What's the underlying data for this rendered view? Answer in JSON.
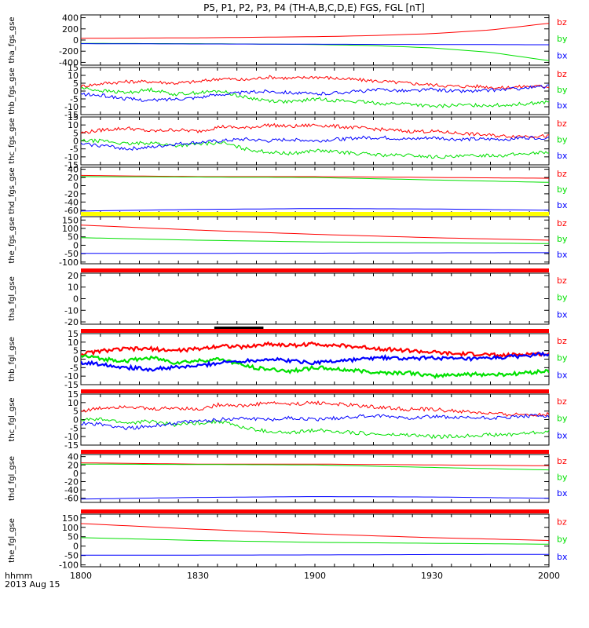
{
  "figure": {
    "title": "P5, P1, P2, P3, P4 (TH-A,B,C,D,E) FGS, FGL [nT]",
    "time_unit_label": "hhmm",
    "date_label": "2013 Aug 15",
    "x_tick_labels": [
      "1800",
      "1830",
      "1900",
      "1930",
      "2000"
    ],
    "x_ticks_hours": [
      18.0,
      18.5,
      19.0,
      19.5,
      20.0
    ],
    "x_range_hours": [
      18.0,
      20.0
    ]
  },
  "colors": {
    "bx": "#0000ff",
    "by": "#00e000",
    "bz": "#ff0000",
    "flag_red": "#ff0000",
    "flag_yellow": "#ffff00",
    "bar_black": "#000000"
  },
  "legend": [
    "bz",
    "by",
    "bx"
  ],
  "chart_data": [
    {
      "type": "line",
      "ylabel": "tha_fgs_gse",
      "ylim": [
        -450,
        450
      ],
      "yticks": [
        400,
        200,
        0,
        -200,
        -400
      ],
      "ytick_labels": [
        "400",
        "200",
        "0",
        "-200",
        "-400"
      ],
      "x": [
        18.0,
        18.5,
        19.0,
        19.25,
        19.5,
        19.75,
        20.0
      ],
      "series": [
        {
          "name": "bz",
          "values": [
            30,
            40,
            60,
            80,
            115,
            180,
            300
          ]
        },
        {
          "name": "by",
          "values": [
            -60,
            -65,
            -80,
            -100,
            -140,
            -220,
            -370
          ]
        },
        {
          "name": "bx",
          "values": [
            -65,
            -70,
            -75,
            -78,
            -80,
            -82,
            -85
          ]
        }
      ],
      "band": null
    },
    {
      "type": "line",
      "ylabel": "thb_fgs_gse",
      "ylim": [
        -15,
        15
      ],
      "yticks": [
        15,
        10,
        5,
        0,
        -5,
        -10,
        -15
      ],
      "ytick_labels": [
        "15",
        "10",
        "5",
        "0",
        "-5",
        "-10",
        "-15"
      ],
      "x": [
        18.0,
        18.1,
        18.2,
        18.3,
        18.4,
        18.5,
        18.6,
        18.7,
        18.8,
        18.9,
        19.0,
        19.1,
        19.2,
        19.3,
        19.4,
        19.5,
        19.6,
        19.7,
        19.8,
        19.9,
        20.0
      ],
      "series": [
        {
          "name": "bz",
          "values": [
            3,
            5,
            6,
            6,
            5,
            6,
            8,
            7,
            9,
            8,
            9,
            8,
            7,
            6,
            5,
            4,
            3,
            3,
            2,
            3,
            3
          ]
        },
        {
          "name": "by",
          "values": [
            2,
            0,
            -1,
            1,
            -2,
            -1,
            0,
            -4,
            -6,
            -7,
            -5,
            -6,
            -7,
            -8,
            -8,
            -10,
            -9,
            -9,
            -9,
            -8,
            -7
          ]
        },
        {
          "name": "bx",
          "values": [
            -2,
            -3,
            -5,
            -6,
            -5,
            -4,
            -2,
            -1,
            0,
            -1,
            -2,
            -1,
            0,
            1,
            0,
            1,
            0,
            0,
            1,
            2,
            3
          ]
        }
      ],
      "band": null
    },
    {
      "type": "line",
      "ylabel": "thc_fgs_gse",
      "ylim": [
        -15,
        15
      ],
      "yticks": [
        15,
        10,
        5,
        0,
        -5,
        -10,
        -15
      ],
      "ytick_labels": [
        "15",
        "10",
        "5",
        "0",
        "-5",
        "-10",
        "-15"
      ],
      "x": [
        18.0,
        18.1,
        18.2,
        18.3,
        18.4,
        18.5,
        18.6,
        18.7,
        18.8,
        18.9,
        19.0,
        19.1,
        19.2,
        19.3,
        19.4,
        19.5,
        19.6,
        19.7,
        19.8,
        19.9,
        20.0
      ],
      "series": [
        {
          "name": "bz",
          "values": [
            5,
            7,
            8,
            6,
            7,
            6,
            9,
            8,
            10,
            9,
            10,
            9,
            8,
            7,
            6,
            6,
            5,
            4,
            3,
            3,
            3
          ]
        },
        {
          "name": "by",
          "values": [
            0,
            0,
            -2,
            -1,
            -3,
            -2,
            -1,
            -5,
            -7,
            -8,
            -6,
            -7,
            -8,
            -9,
            -9,
            -10,
            -10,
            -9,
            -9,
            -8,
            -7
          ]
        },
        {
          "name": "bx",
          "values": [
            -2,
            -3,
            -5,
            -4,
            -2,
            -1,
            0,
            1,
            0,
            1,
            0,
            1,
            2,
            2,
            1,
            2,
            1,
            1,
            1,
            2,
            2
          ]
        }
      ],
      "band": null
    },
    {
      "type": "line",
      "ylabel": "thd_fgs_gse",
      "ylim": [
        -70,
        45
      ],
      "yticks": [
        40,
        20,
        0,
        -20,
        -40,
        -60
      ],
      "ytick_labels": [
        "40",
        "20",
        "0",
        "-20",
        "-40",
        "-60"
      ],
      "x": [
        18.0,
        18.5,
        19.0,
        19.5,
        20.0
      ],
      "series": [
        {
          "name": "bz",
          "values": [
            25,
            22,
            22,
            20,
            18
          ]
        },
        {
          "name": "by",
          "values": [
            22,
            21,
            20,
            14,
            8
          ]
        },
        {
          "name": "bx",
          "values": [
            -62,
            -58,
            -56,
            -57,
            -60
          ]
        }
      ],
      "band": null
    },
    {
      "type": "line",
      "ylabel": "the_fgs_gse",
      "ylim": [
        -110,
        170
      ],
      "yticks": [
        150,
        100,
        50,
        0,
        -50,
        -100
      ],
      "ytick_labels": [
        "150",
        "100",
        "50",
        "0",
        "-50",
        "-100"
      ],
      "x": [
        18.0,
        18.5,
        19.0,
        19.5,
        20.0
      ],
      "series": [
        {
          "name": "bz",
          "values": [
            120,
            90,
            65,
            45,
            30
          ]
        },
        {
          "name": "by",
          "values": [
            45,
            30,
            20,
            15,
            10
          ]
        },
        {
          "name": "bx",
          "values": [
            -48,
            -48,
            -47,
            -45,
            -44
          ]
        }
      ],
      "band": "yellow"
    },
    {
      "type": "line",
      "ylabel": "tha_fgl_gse",
      "ylim": [
        -22,
        22
      ],
      "yticks": [
        20,
        10,
        0,
        -10,
        -20
      ],
      "ytick_labels": [
        "20",
        "10",
        "0",
        "-10",
        "-20"
      ],
      "x": [],
      "series": [],
      "band": "red"
    },
    {
      "type": "line",
      "ylabel": "thb_fgl_gse",
      "ylim": [
        -15,
        15
      ],
      "yticks": [
        15,
        10,
        5,
        0,
        -5,
        -10,
        -15
      ],
      "ytick_labels": [
        "15",
        "10",
        "5",
        "0",
        "-5",
        "-10",
        "-15"
      ],
      "x": [
        18.0,
        18.1,
        18.2,
        18.3,
        18.4,
        18.5,
        18.6,
        18.7,
        18.8,
        18.9,
        19.0,
        19.1,
        19.2,
        19.3,
        19.4,
        19.5,
        19.6,
        19.7,
        19.8,
        19.9,
        20.0
      ],
      "series": [
        {
          "name": "bz",
          "values": [
            3,
            5,
            6,
            6,
            5,
            6,
            8,
            7,
            9,
            8,
            9,
            8,
            7,
            6,
            5,
            4,
            3,
            3,
            2,
            3,
            3
          ]
        },
        {
          "name": "by",
          "values": [
            2,
            0,
            -1,
            1,
            -2,
            -1,
            0,
            -4,
            -6,
            -7,
            -5,
            -6,
            -7,
            -8,
            -8,
            -10,
            -9,
            -9,
            -9,
            -8,
            -7
          ]
        },
        {
          "name": "bx",
          "values": [
            -2,
            -3,
            -5,
            -6,
            -5,
            -4,
            -2,
            -1,
            0,
            -1,
            -2,
            -1,
            0,
            1,
            0,
            1,
            0,
            0,
            1,
            2,
            3
          ]
        }
      ],
      "band": "red",
      "black_bar_hours": [
        18.57,
        18.78
      ]
    },
    {
      "type": "line",
      "ylabel": "thc_fgl_gse",
      "ylim": [
        -15,
        15
      ],
      "yticks": [
        15,
        10,
        5,
        0,
        -5,
        -10,
        -15
      ],
      "ytick_labels": [
        "15",
        "10",
        "5",
        "0",
        "-5",
        "-10",
        "-15"
      ],
      "x": [
        18.0,
        18.1,
        18.2,
        18.3,
        18.4,
        18.5,
        18.6,
        18.7,
        18.8,
        18.9,
        19.0,
        19.1,
        19.2,
        19.3,
        19.4,
        19.5,
        19.6,
        19.7,
        19.8,
        19.9,
        20.0
      ],
      "series": [
        {
          "name": "bz",
          "values": [
            5,
            7,
            8,
            6,
            7,
            6,
            9,
            8,
            10,
            9,
            10,
            9,
            8,
            7,
            6,
            6,
            5,
            4,
            3,
            3,
            3
          ]
        },
        {
          "name": "by",
          "values": [
            0,
            0,
            -2,
            -1,
            -3,
            -2,
            -1,
            -5,
            -7,
            -8,
            -6,
            -7,
            -8,
            -9,
            -9,
            -10,
            -10,
            -9,
            -9,
            -8,
            -7
          ]
        },
        {
          "name": "bx",
          "values": [
            -2,
            -3,
            -5,
            -4,
            -2,
            -1,
            0,
            1,
            0,
            1,
            0,
            1,
            2,
            2,
            1,
            2,
            1,
            1,
            1,
            2,
            2
          ]
        }
      ],
      "band": "red"
    },
    {
      "type": "line",
      "ylabel": "thd_fgl_gse",
      "ylim": [
        -70,
        45
      ],
      "yticks": [
        40,
        20,
        0,
        -20,
        -40,
        -60
      ],
      "ytick_labels": [
        "40",
        "20",
        "0",
        "-20",
        "-40",
        "-60"
      ],
      "x": [
        18.0,
        18.5,
        19.0,
        19.5,
        20.0
      ],
      "series": [
        {
          "name": "bz",
          "values": [
            25,
            22,
            22,
            20,
            18
          ]
        },
        {
          "name": "by",
          "values": [
            22,
            21,
            20,
            14,
            8
          ]
        },
        {
          "name": "bx",
          "values": [
            -62,
            -58,
            -56,
            -57,
            -60
          ]
        }
      ],
      "band": "red"
    },
    {
      "type": "line",
      "ylabel": "the_fgl_gse",
      "ylim": [
        -110,
        170
      ],
      "yticks": [
        150,
        100,
        50,
        0,
        -50,
        -100
      ],
      "ytick_labels": [
        "150",
        "100",
        "50",
        "0",
        "-50",
        "-100"
      ],
      "x": [
        18.0,
        18.5,
        19.0,
        19.5,
        20.0
      ],
      "series": [
        {
          "name": "bz",
          "values": [
            120,
            90,
            65,
            45,
            30
          ]
        },
        {
          "name": "by",
          "values": [
            45,
            30,
            20,
            15,
            10
          ]
        },
        {
          "name": "bx",
          "values": [
            -48,
            -48,
            -47,
            -45,
            -44
          ]
        }
      ],
      "band": "red"
    }
  ]
}
